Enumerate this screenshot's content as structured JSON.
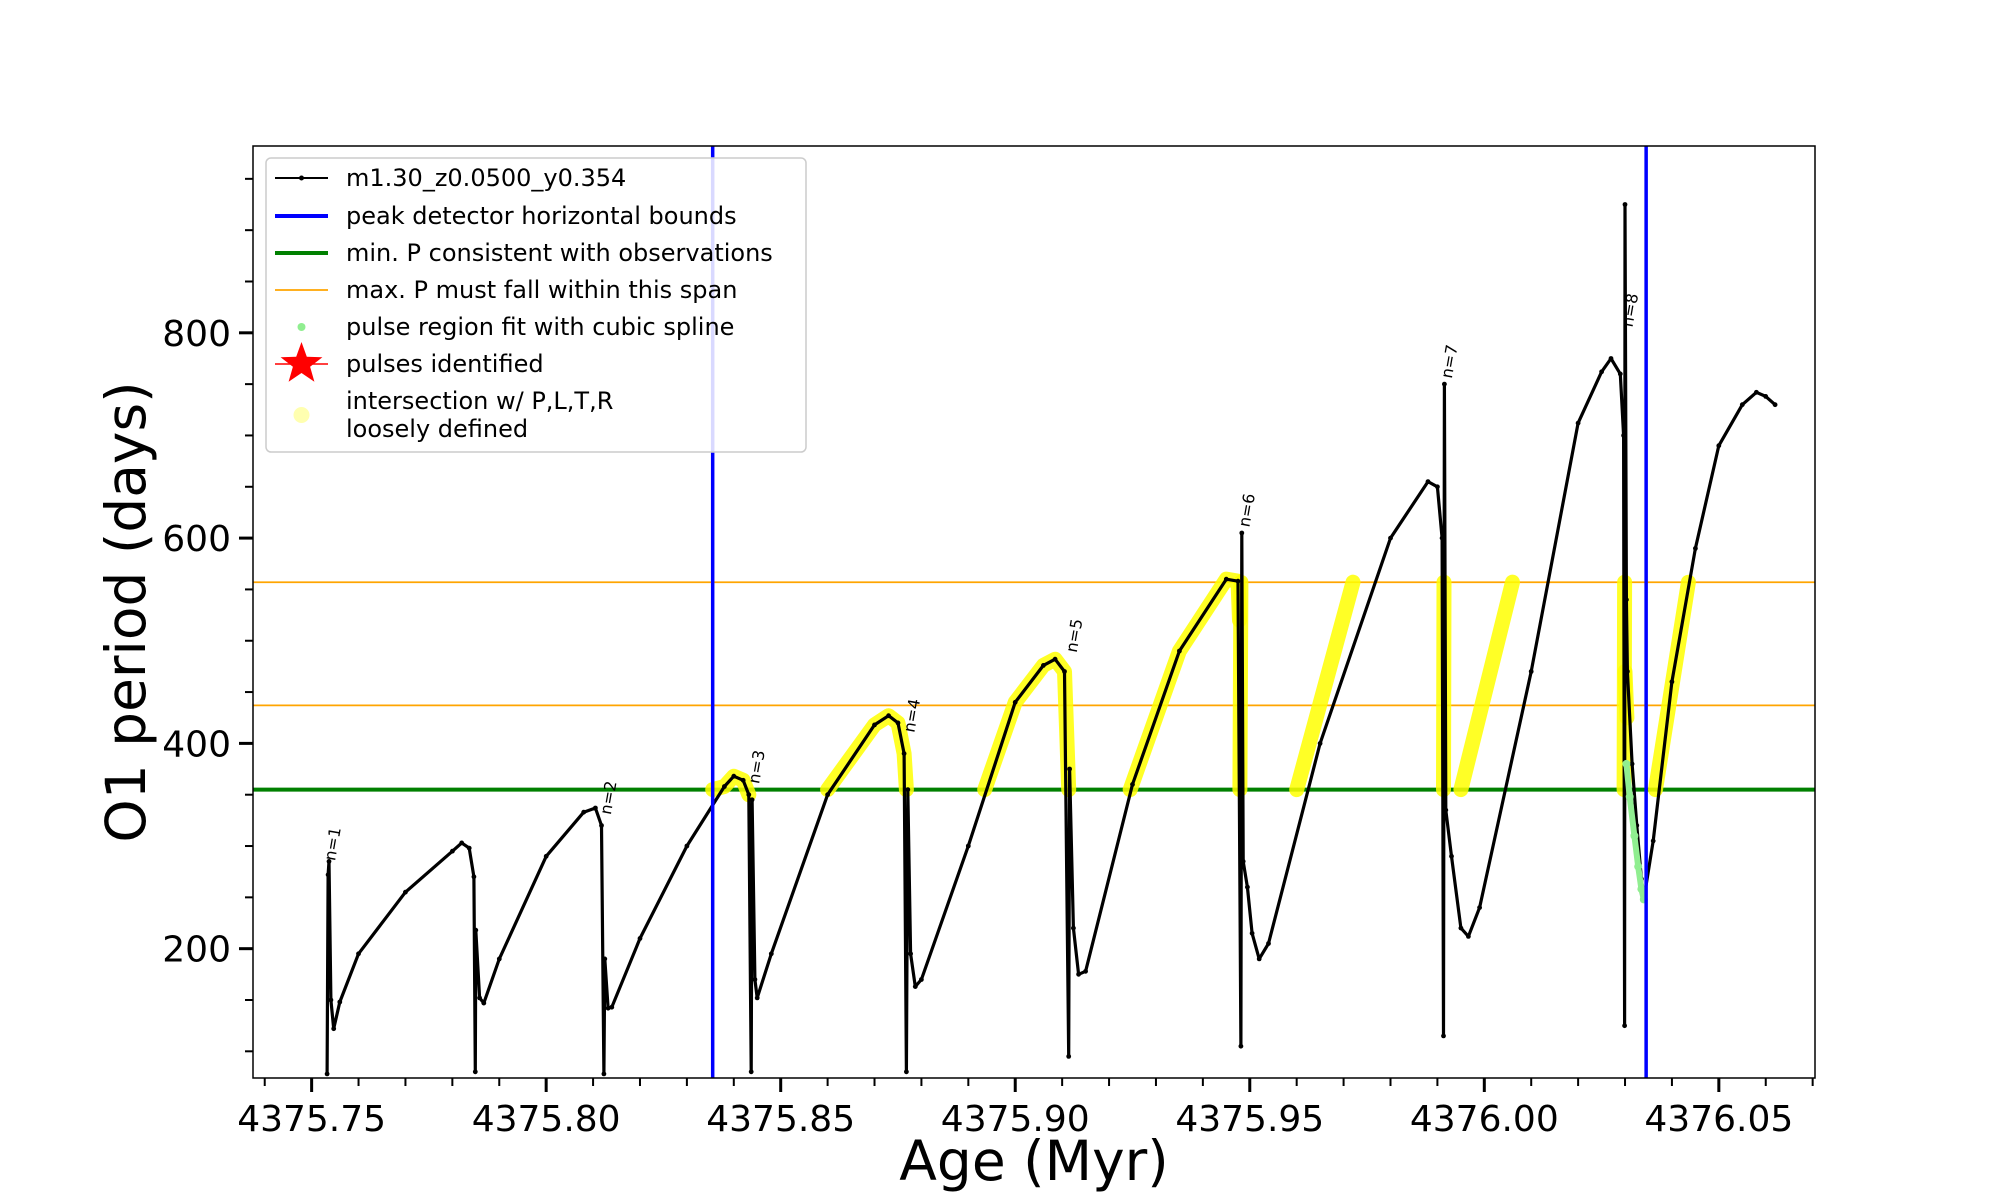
{
  "chart_data": {
    "type": "line",
    "title": "",
    "xlabel": "Age (Myr)",
    "ylabel": "O1 period (days)",
    "xlim": [
      4375.7375,
      4376.0705
    ],
    "ylim": [
      74,
      982
    ],
    "xticks": [
      4375.75,
      4375.8,
      4375.85,
      4375.9,
      4375.95,
      4376.0,
      4376.05
    ],
    "xtick_labels": [
      "4375.75",
      "4375.80",
      "4375.85",
      "4375.90",
      "4375.95",
      "4376.00",
      "4376.05"
    ],
    "yticks": [
      200,
      400,
      600,
      800
    ],
    "ytick_labels": [
      "200",
      "400",
      "600",
      "800"
    ],
    "legend_position": "top-left",
    "legend": [
      {
        "label": "m1.30_z0.0500_y0.354",
        "style": "line-marker",
        "color": "#000000"
      },
      {
        "label": "peak detector horizontal bounds",
        "style": "line",
        "color": "#0000ff"
      },
      {
        "label": "min. P consistent with observations",
        "style": "line",
        "color": "#008000"
      },
      {
        "label": "max. P must fall within this span",
        "style": "thin-line",
        "color": "#ffa500"
      },
      {
        "label": "pulse region fit with cubic spline",
        "style": "dot",
        "color": "#90ee90"
      },
      {
        "label": "pulses identified",
        "style": "star",
        "color": "#ff0000"
      },
      {
        "label": "intersection w/ P,L,T,R\nloosely defined",
        "style": "dot",
        "color": "#ffffb0"
      }
    ],
    "vertical_lines": [
      {
        "x": 4375.8355,
        "color": "#0000ff"
      },
      {
        "x": 4376.0345,
        "color": "#0000ff"
      }
    ],
    "horizontal_lines": [
      {
        "y": 355,
        "color": "#008000"
      },
      {
        "y": 437,
        "color": "#ffa500"
      },
      {
        "y": 557,
        "color": "#ffa500"
      }
    ],
    "series": [
      {
        "name": "m1.30_z0.0500_y0.354",
        "color": "#000000",
        "points": [
          [
            4375.7533,
            78
          ],
          [
            4375.7535,
            272
          ],
          [
            4375.7537,
            285
          ],
          [
            4375.7541,
            150
          ],
          [
            4375.7547,
            122
          ],
          [
            4375.756,
            148
          ],
          [
            4375.76,
            195
          ],
          [
            4375.77,
            255
          ],
          [
            4375.78,
            295
          ],
          [
            4375.782,
            303
          ],
          [
            4375.7836,
            298
          ],
          [
            4375.7846,
            270
          ],
          [
            4375.7849,
            80
          ],
          [
            4375.785,
            218
          ],
          [
            4375.7858,
            152
          ],
          [
            4375.7867,
            147
          ],
          [
            4375.79,
            190
          ],
          [
            4375.8,
            290
          ],
          [
            4375.808,
            333
          ],
          [
            4375.8105,
            337
          ],
          [
            4375.8118,
            320
          ],
          [
            4375.8123,
            78
          ],
          [
            4375.8125,
            190
          ],
          [
            4375.8132,
            142
          ],
          [
            4375.814,
            143
          ],
          [
            4375.82,
            210
          ],
          [
            4375.83,
            300
          ],
          [
            4375.838,
            358
          ],
          [
            4375.84,
            368
          ],
          [
            4375.842,
            364
          ],
          [
            4375.8432,
            350
          ],
          [
            4375.8437,
            80
          ],
          [
            4375.8439,
            345
          ],
          [
            4375.8445,
            170
          ],
          [
            4375.845,
            152
          ],
          [
            4375.848,
            195
          ],
          [
            4375.86,
            350
          ],
          [
            4375.87,
            418
          ],
          [
            4375.873,
            427
          ],
          [
            4375.875,
            420
          ],
          [
            4375.8763,
            390
          ],
          [
            4375.8768,
            80
          ],
          [
            4375.8771,
            355
          ],
          [
            4375.8777,
            195
          ],
          [
            4375.8787,
            163
          ],
          [
            4375.88,
            170
          ],
          [
            4375.89,
            300
          ],
          [
            4375.9,
            440
          ],
          [
            4375.906,
            476
          ],
          [
            4375.9085,
            482
          ],
          [
            4375.9105,
            470
          ],
          [
            4375.9114,
            95
          ],
          [
            4375.9116,
            375
          ],
          [
            4375.9124,
            220
          ],
          [
            4375.9135,
            175
          ],
          [
            4375.915,
            178
          ],
          [
            4375.925,
            360
          ],
          [
            4375.935,
            490
          ],
          [
            4375.945,
            560
          ],
          [
            4375.9475,
            558
          ],
          [
            4375.9481,
            105
          ],
          [
            4375.9483,
            605
          ],
          [
            4375.9486,
            285
          ],
          [
            4375.9495,
            260
          ],
          [
            4375.9505,
            215
          ],
          [
            4375.952,
            190
          ],
          [
            4375.954,
            205
          ],
          [
            4375.965,
            400
          ],
          [
            4375.98,
            600
          ],
          [
            4375.988,
            655
          ],
          [
            4375.99,
            650
          ],
          [
            4375.991,
            600
          ],
          [
            4375.9913,
            115
          ],
          [
            4375.9915,
            750
          ],
          [
            4375.9918,
            335
          ],
          [
            4375.993,
            290
          ],
          [
            4375.995,
            220
          ],
          [
            4375.9966,
            212
          ],
          [
            4375.999,
            240
          ],
          [
            4376.01,
            470
          ],
          [
            4376.02,
            712
          ],
          [
            4376.025,
            762
          ],
          [
            4376.027,
            775
          ],
          [
            4376.029,
            760
          ],
          [
            4376.0297,
            700
          ],
          [
            4376.0299,
            125
          ],
          [
            4376.03,
            925
          ],
          [
            4376.0303,
            540
          ],
          [
            4376.0305,
            470
          ],
          [
            4376.0315,
            380
          ],
          [
            4376.0325,
            320
          ],
          [
            4376.0335,
            268
          ],
          [
            4376.034,
            248
          ],
          [
            4376.036,
            305
          ],
          [
            4376.04,
            460
          ],
          [
            4376.045,
            590
          ],
          [
            4376.05,
            690
          ],
          [
            4376.055,
            730
          ],
          [
            4376.058,
            742
          ],
          [
            4376.06,
            738
          ],
          [
            4376.062,
            730
          ]
        ]
      },
      {
        "name": "pulse region fit with cubic spline",
        "color": "#90ee90",
        "points": [
          [
            4376.0303,
            380
          ],
          [
            4376.031,
            348
          ],
          [
            4376.032,
            310
          ],
          [
            4376.0328,
            280
          ],
          [
            4376.0335,
            258
          ],
          [
            4376.034,
            248
          ]
        ]
      }
    ],
    "highlight_segments": [
      {
        "points": [
          [
            4375.8355,
            355
          ],
          [
            4375.838,
            358
          ],
          [
            4375.84,
            368
          ],
          [
            4375.842,
            364
          ],
          [
            4375.8432,
            350
          ]
        ]
      },
      {
        "points": [
          [
            4375.86,
            355
          ],
          [
            4375.87,
            418
          ],
          [
            4375.873,
            427
          ],
          [
            4375.875,
            420
          ],
          [
            4375.8763,
            390
          ],
          [
            4375.8768,
            355
          ]
        ]
      },
      {
        "points": [
          [
            4375.8935,
            355
          ],
          [
            4375.9,
            440
          ],
          [
            4375.906,
            476
          ],
          [
            4375.9085,
            482
          ],
          [
            4375.9105,
            470
          ],
          [
            4375.9114,
            355
          ]
        ]
      },
      {
        "points": [
          [
            4375.9245,
            355
          ],
          [
            4375.935,
            490
          ],
          [
            4375.945,
            560
          ],
          [
            4375.9475,
            558
          ],
          [
            4375.9478,
            520
          ]
        ]
      },
      {
        "points": [
          [
            4375.9479,
            355
          ],
          [
            4375.9481,
            557
          ]
        ]
      },
      {
        "points": [
          [
            4375.96,
            355
          ],
          [
            4375.972,
            557
          ]
        ]
      },
      {
        "points": [
          [
            4375.9913,
            355
          ],
          [
            4375.9914,
            557
          ]
        ]
      },
      {
        "points": [
          [
            4375.995,
            355
          ],
          [
            4376.006,
            557
          ]
        ]
      },
      {
        "points": [
          [
            4376.0298,
            355
          ],
          [
            4376.0299,
            557
          ]
        ]
      },
      {
        "points": [
          [
            4376.03,
            470
          ],
          [
            4376.0304,
            425
          ]
        ]
      },
      {
        "points": [
          [
            4376.0365,
            355
          ],
          [
            4376.0435,
            557
          ]
        ]
      }
    ],
    "highlight_color": "#ffff00",
    "pulse_labels": [
      {
        "label": "n=1",
        "x": 4375.7537,
        "y": 285
      },
      {
        "label": "n=2",
        "x": 4375.8125,
        "y": 330
      },
      {
        "label": "n=3",
        "x": 4375.8441,
        "y": 360
      },
      {
        "label": "n=4",
        "x": 4375.8772,
        "y": 410
      },
      {
        "label": "n=5",
        "x": 4375.9118,
        "y": 488
      },
      {
        "label": "n=6",
        "x": 4375.9486,
        "y": 610
      },
      {
        "label": "n=7",
        "x": 4375.9918,
        "y": 755
      },
      {
        "label": "n=8",
        "x": 4376.0303,
        "y": 805
      }
    ]
  }
}
